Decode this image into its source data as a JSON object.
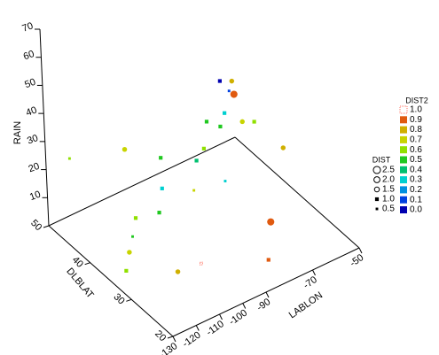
{
  "chart_data": {
    "type": "scatter3d",
    "xlabel": "LABLON",
    "ylabel": "DLBLAT",
    "zlabel": "RAIN",
    "xlim": [
      -130,
      -50
    ],
    "xticks": [
      -130,
      -120,
      -110,
      -100,
      -90,
      -70,
      -50
    ],
    "ylim": [
      20,
      50
    ],
    "yticks": [
      20,
      30,
      40,
      50
    ],
    "zlim": [
      0,
      70
    ],
    "zticks": [
      10,
      20,
      30,
      40,
      50,
      60,
      70
    ],
    "points": {
      "x": [
        -62,
        -60,
        -58,
        -57,
        -64,
        -60,
        -55,
        -50,
        -66,
        -70,
        -75,
        -80,
        -75,
        -90,
        -100,
        -120,
        -85,
        -95,
        -100,
        -110,
        -115,
        -120,
        -70,
        -110,
        -100,
        -80,
        -125
      ],
      "y": [
        46,
        45,
        45,
        46,
        44,
        42,
        42,
        38,
        44,
        45,
        43,
        42,
        38,
        45,
        48,
        50,
        40,
        42,
        40,
        40,
        38,
        36,
        30,
        30,
        30,
        25,
        34
      ],
      "z": [
        30,
        27,
        25,
        28,
        22,
        20,
        18,
        12,
        18,
        20,
        15,
        14,
        10,
        15,
        18,
        20,
        8,
        10,
        6,
        8,
        6,
        5,
        4,
        2,
        1,
        1,
        3
      ],
      "size": [
        1.0,
        0.5,
        2.5,
        1.5,
        1.0,
        1.5,
        1.0,
        1.5,
        1.0,
        1.0,
        1.0,
        1.0,
        0.5,
        1.0,
        1.5,
        0.5,
        0.5,
        1.0,
        1.0,
        1.0,
        0.5,
        1.5,
        2.5,
        1.5,
        0.5,
        1.0,
        1.0
      ],
      "color_value": [
        0.0,
        0.1,
        0.9,
        0.8,
        0.3,
        0.7,
        0.6,
        0.8,
        0.5,
        0.5,
        0.6,
        0.4,
        0.3,
        0.5,
        0.7,
        0.6,
        0.7,
        0.3,
        0.5,
        0.6,
        0.5,
        0.7,
        0.9,
        0.8,
        1.0,
        0.9,
        0.6
      ]
    },
    "color_legend": {
      "title": "DIST2",
      "levels": [
        {
          "value": 1,
          "label": "1.0"
        },
        0.9,
        0.8,
        0.7,
        0.6,
        0.5,
        0.4,
        0.3,
        0.2,
        0.1,
        {
          "value": 0,
          "label": "0.0"
        }
      ],
      "colors": [
        "#ff7060",
        "#e05a10",
        "#d0b000",
        "#c8d400",
        "#90e000",
        "#20c820",
        "#00c070",
        "#00d0d0",
        "#0090e0",
        "#0040e0",
        "#0000b0"
      ]
    },
    "size_legend": {
      "title": "DIST",
      "levels": [
        2.5,
        {
          "value": 2,
          "label": "2.0"
        },
        1.5,
        {
          "value": 1,
          "label": "1.0"
        },
        0.5
      ]
    }
  }
}
